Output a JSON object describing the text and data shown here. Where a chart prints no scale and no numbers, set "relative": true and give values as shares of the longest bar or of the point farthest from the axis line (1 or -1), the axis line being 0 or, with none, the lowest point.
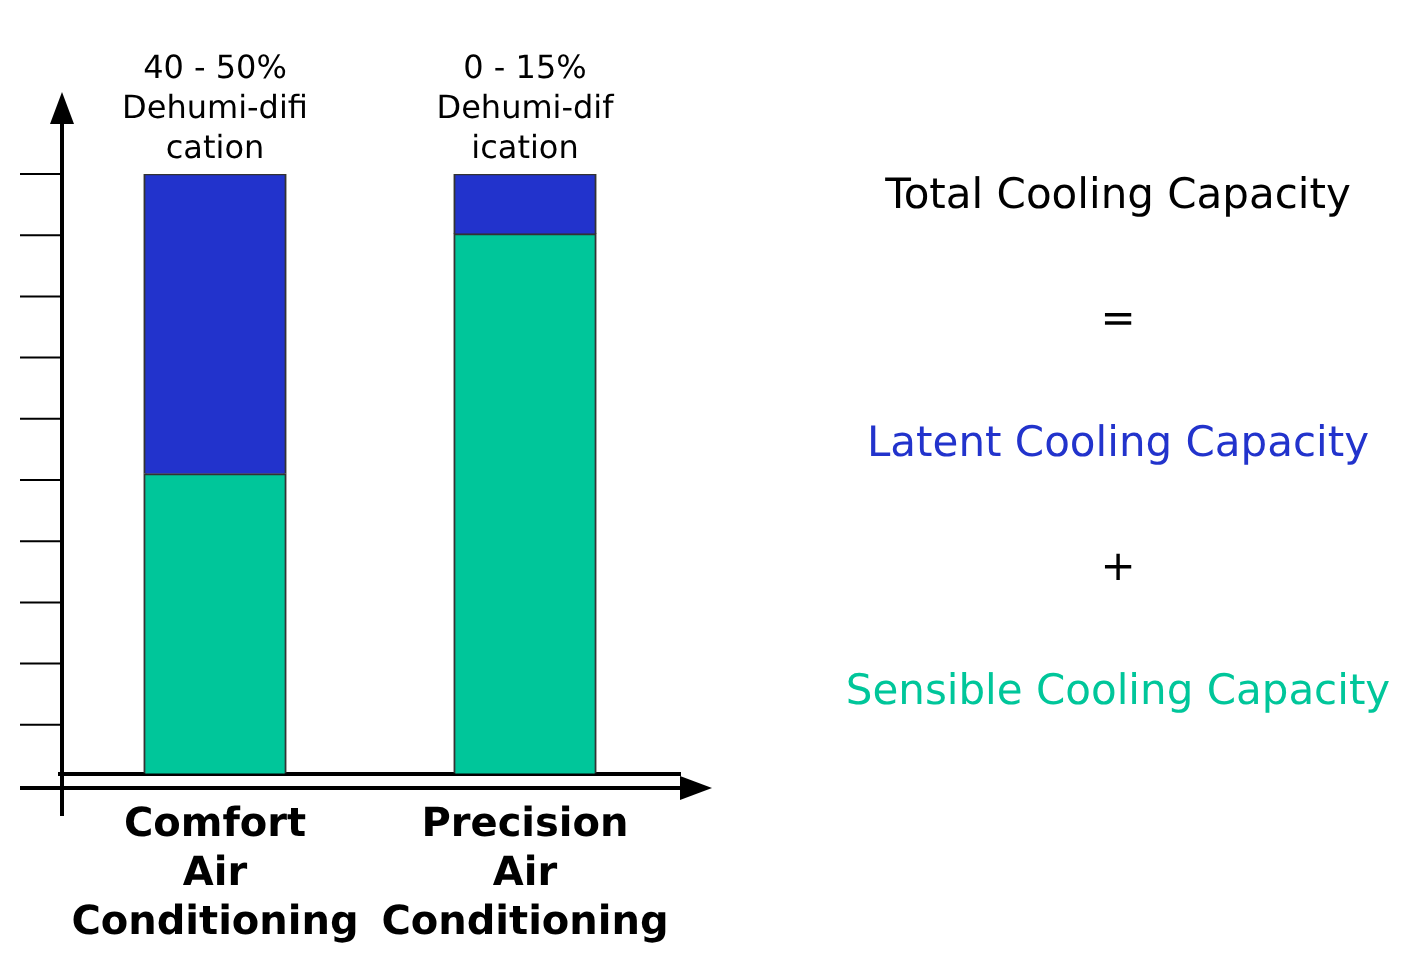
{
  "chart_data": {
    "type": "bar",
    "stacked": true,
    "relative": true,
    "legend": false,
    "grid": false,
    "categories": [
      "Comfort Air Conditioning",
      "Precision Air Conditioning"
    ],
    "series": [
      {
        "name": "Sensible Cooling Capacity",
        "color": "#00c69a",
        "values": [
          0.5,
          0.9
        ]
      },
      {
        "name": "Latent Cooling Capacity",
        "color": "#2233cc",
        "values": [
          0.5,
          0.1
        ]
      }
    ],
    "annotations": [
      "40 - 50%\nDehumi-difi\ncation",
      "0 - 15%\nDehumi-dif\nication",
      "Total Cooling Capacity",
      "=",
      "+"
    ]
  }
}
